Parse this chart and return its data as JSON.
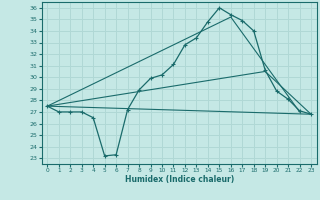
{
  "xlabel": "Humidex (Indice chaleur)",
  "xlim": [
    -0.5,
    23.5
  ],
  "ylim": [
    22.5,
    36.5
  ],
  "yticks": [
    23,
    24,
    25,
    26,
    27,
    28,
    29,
    30,
    31,
    32,
    33,
    34,
    35,
    36
  ],
  "xticks": [
    0,
    1,
    2,
    3,
    4,
    5,
    6,
    7,
    8,
    9,
    10,
    11,
    12,
    13,
    14,
    15,
    16,
    17,
    18,
    19,
    20,
    21,
    22,
    23
  ],
  "background_color": "#c5e8e5",
  "line_color": "#1a6b6b",
  "grid_color": "#b0d8d5",
  "line1_x": [
    0,
    1,
    2,
    3,
    4,
    5,
    6,
    7,
    8,
    9,
    10,
    11,
    12,
    13,
    14,
    15,
    16,
    17,
    18,
    19,
    20,
    21,
    22,
    23
  ],
  "line1_y": [
    27.5,
    27.0,
    27.0,
    27.0,
    26.5,
    23.2,
    23.3,
    27.2,
    28.9,
    29.9,
    30.2,
    31.1,
    32.8,
    33.4,
    34.8,
    36.0,
    35.4,
    34.9,
    34.0,
    30.6,
    28.8,
    28.1,
    27.1,
    26.8
  ],
  "line2_x": [
    0,
    23
  ],
  "line2_y": [
    27.5,
    26.8
  ],
  "line3_x": [
    0,
    19,
    23
  ],
  "line3_y": [
    27.5,
    30.5,
    26.8
  ],
  "line4_x": [
    0,
    16,
    22
  ],
  "line4_y": [
    27.5,
    35.2,
    27.0
  ]
}
